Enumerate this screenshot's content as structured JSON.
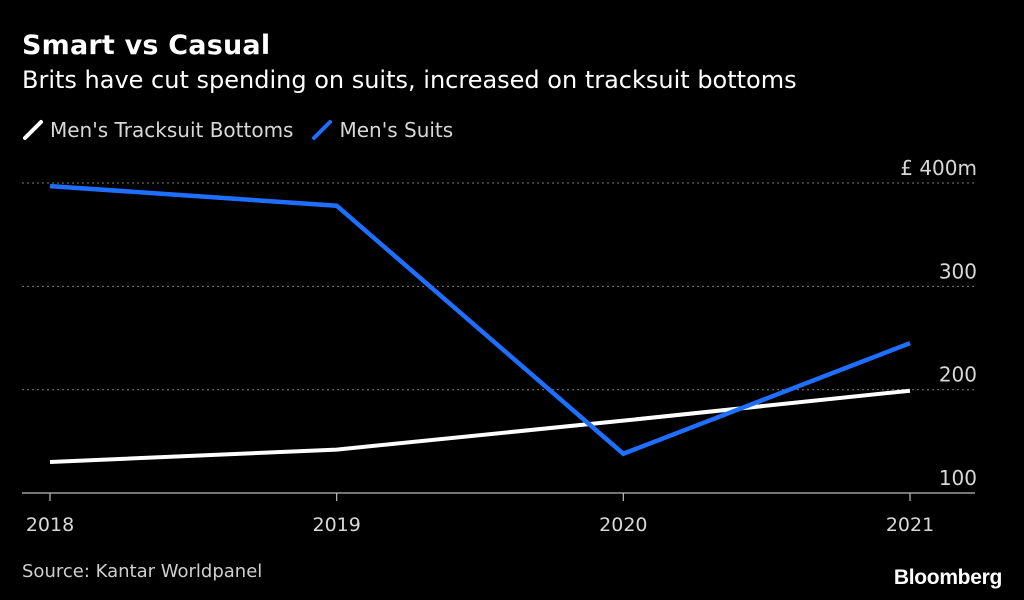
{
  "header": {
    "title": "Smart vs Casual",
    "subtitle": "Brits have cut spending on suits, increased on tracksuit bottoms"
  },
  "legend": {
    "items": [
      {
        "label": "Men's Tracksuit Bottoms",
        "color": "#ffffff"
      },
      {
        "label": "Men's Suits",
        "color": "#1f6fff"
      }
    ]
  },
  "footer": {
    "source": "Source: Kantar Worldpanel",
    "brand": "Bloomberg"
  },
  "chart_data": {
    "type": "line",
    "title": "Smart vs Casual",
    "subtitle": "Brits have cut spending on suits, increased on tracksuit bottoms",
    "x": [
      "2018",
      "2019",
      "2020",
      "2021"
    ],
    "ylabel": "£ m",
    "ylim": [
      100,
      400
    ],
    "yticks": [
      {
        "value": 400,
        "label": "£ 400m"
      },
      {
        "value": 300,
        "label": "300"
      },
      {
        "value": 200,
        "label": "200"
      },
      {
        "value": 100,
        "label": "100"
      }
    ],
    "grid": true,
    "series": [
      {
        "name": "Men's Tracksuit Bottoms",
        "color": "#ffffff",
        "values": [
          130,
          142,
          170,
          199
        ]
      },
      {
        "name": "Men's Suits",
        "color": "#1f6fff",
        "values": [
          397,
          378,
          138,
          245
        ]
      }
    ],
    "source": "Source: Kantar Worldpanel"
  }
}
